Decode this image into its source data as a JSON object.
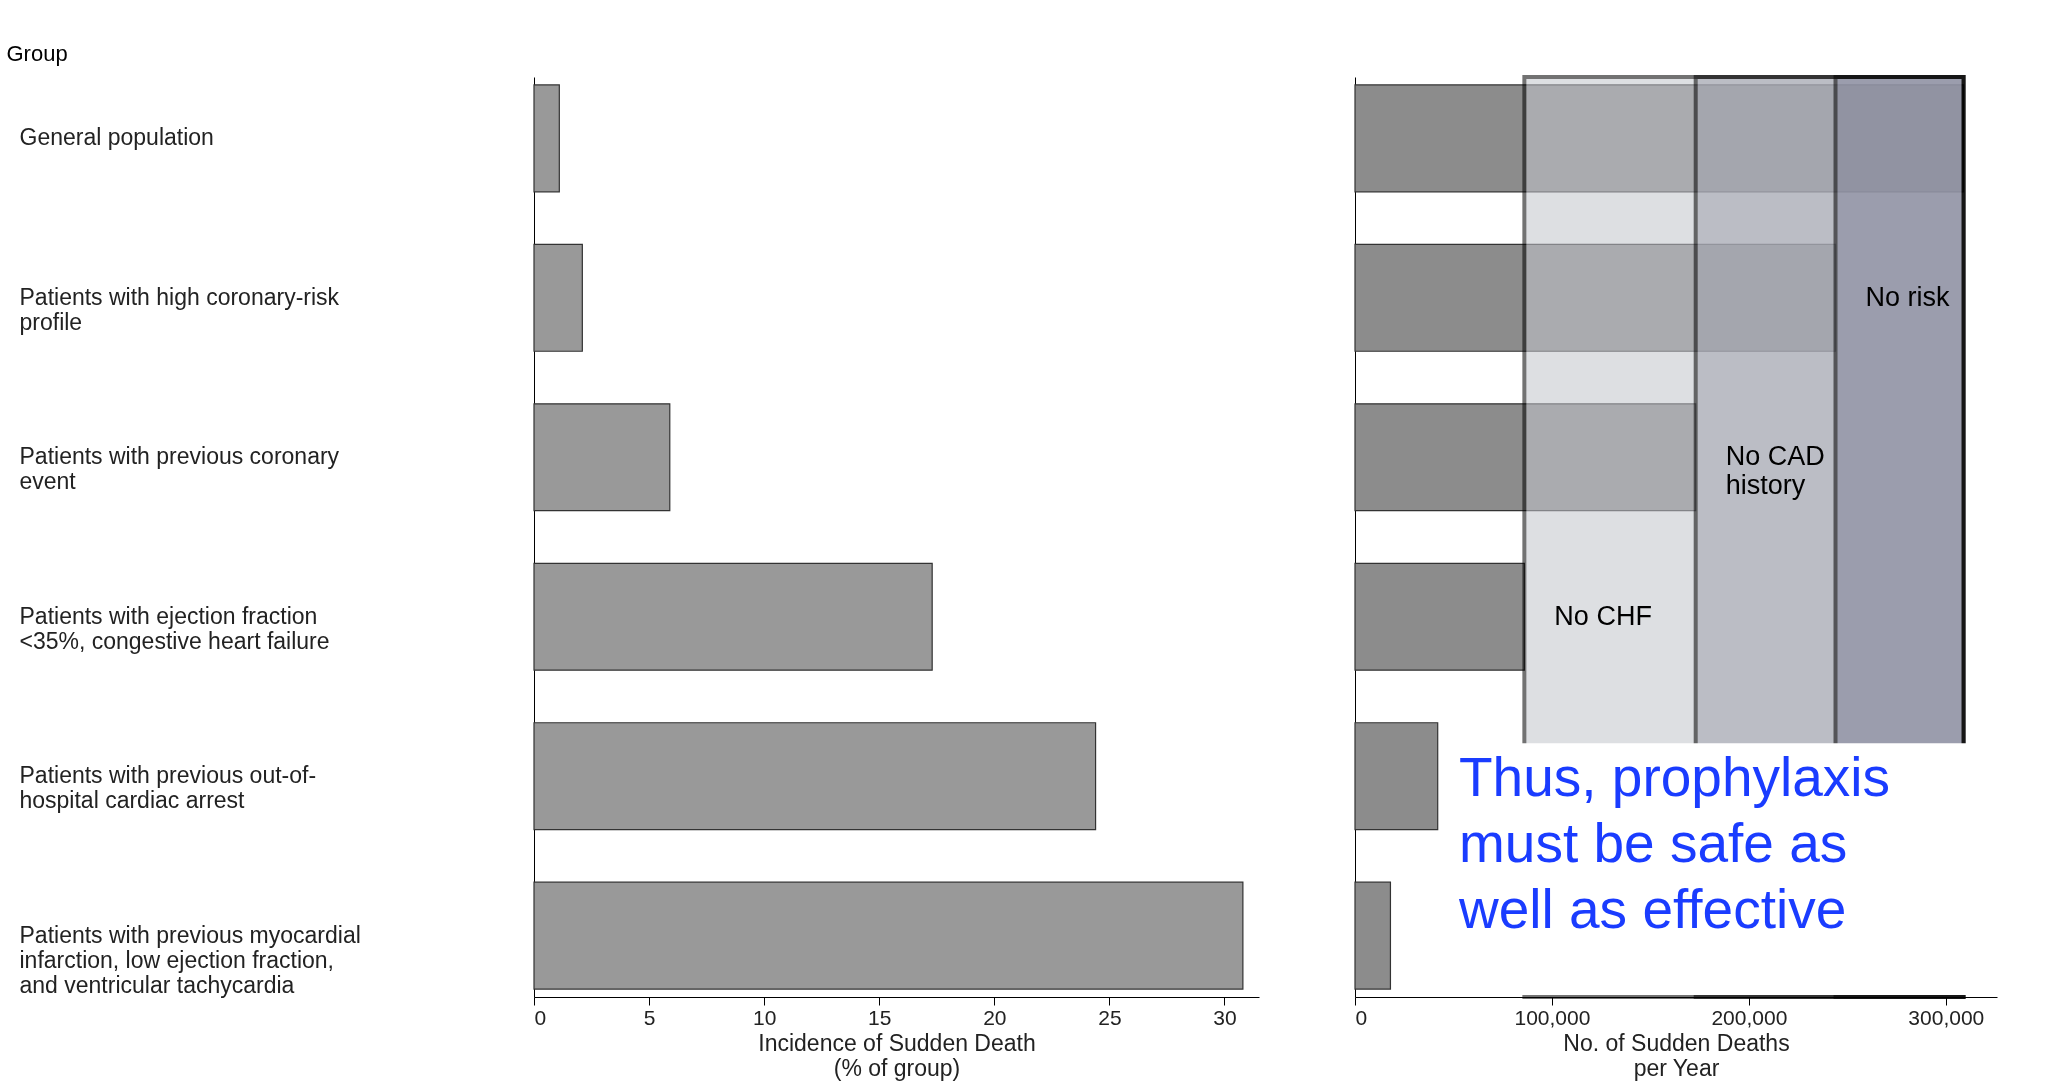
{
  "chart_data": [
    {
      "type": "bar",
      "orientation": "horizontal",
      "ylabel": "Group",
      "xlabel": "Incidence of Sudden Death (% of group)",
      "categories": [
        "General population",
        "Patients with high coronary-risk profile",
        "Patients with previous coronary event",
        "Patients with ejection fraction <35%, congestive heart failure",
        "Patients with previous out-of-hospital cardiac arrest",
        "Patients with previous myocardial infarction, low ejection fraction, and ventricular tachycardia"
      ],
      "values": [
        1.1,
        2.1,
        5.9,
        17.3,
        24.4,
        30.8
      ],
      "color": "#999999",
      "xlim": [
        0,
        31.5
      ],
      "xticks": [
        0,
        5,
        10,
        15,
        20,
        25,
        30
      ],
      "grid": false
    },
    {
      "type": "bar",
      "orientation": "horizontal",
      "xlabel": "No. of Sudden Deaths per Year",
      "tick_labels": "x",
      "categories": [
        null,
        null,
        null,
        null,
        null,
        null
      ],
      "values": [
        309000,
        244000,
        173000,
        86000,
        42000,
        18000
      ],
      "color": "#8c8c8c",
      "xlim": [
        0,
        326000
      ],
      "xticks": [
        0,
        {
          "value": 100000,
          "label": "100,000"
        },
        {
          "value": 200000,
          "label": "200,000"
        },
        {
          "value": 300000,
          "label": "300,000"
        }
      ],
      "grid": false,
      "bands": [
        {
          "axis": "x",
          "from": 86000,
          "to": 309000,
          "label": "No CHF",
          "color": "#c3c5cc"
        },
        {
          "axis": "x",
          "from": 173000,
          "to": 309000,
          "label": "No CAD history",
          "color": "#a0a2ae"
        },
        {
          "axis": "x",
          "from": 244000,
          "to": 309000,
          "label": "No risk",
          "color": "#82849a"
        }
      ],
      "annotations": [
        "Thus, prophylaxis must be safe as well as effective"
      ]
    }
  ]
}
